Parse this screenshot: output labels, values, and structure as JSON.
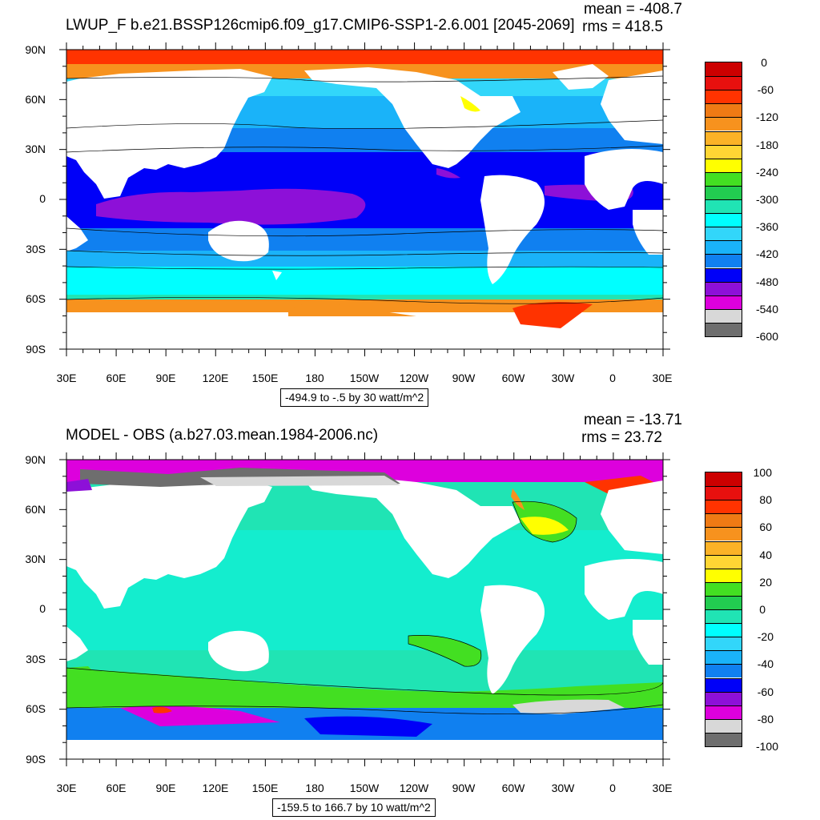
{
  "panels": [
    {
      "title": "LWUP_F b.e21.BSSP126cmip6.f09_g17.CMIP6-SSP1-2.6.001 [2045-2069]",
      "mean_text": "mean = -408.7",
      "rms_text": "rms = 418.5",
      "info_box": "-494.9 to -.5 by 30 watt/m^2",
      "lat_labels": [
        "90N",
        "60N",
        "30N",
        "0",
        "30S",
        "60S",
        "90S"
      ],
      "lon_labels": [
        "30E",
        "60E",
        "90E",
        "120E",
        "150E",
        "180",
        "150W",
        "120W",
        "90W",
        "60W",
        "30W",
        "0",
        "30E"
      ],
      "colorbar": {
        "labels": [
          "0",
          "-60",
          "-120",
          "-180",
          "-240",
          "-300",
          "-360",
          "-420",
          "-480",
          "-540",
          "-600"
        ],
        "colors": [
          "#cc0000",
          "#e8100e",
          "#ff3300",
          "#ef7a14",
          "#f7921e",
          "#fbb227",
          "#ffd634",
          "#ffff00",
          "#43df22",
          "#22cc50",
          "#20e4b4",
          "#00ffff",
          "#32d6fa",
          "#1ab3f9",
          "#1080f0",
          "#0000f8",
          "#8d10d8",
          "#dd00dd",
          "#d8d8d8",
          "#6e6e6e"
        ]
      }
    },
    {
      "title": "MODEL - OBS (a.b27.03.mean.1984-2006.nc)",
      "mean_text": "mean = -13.71",
      "rms_text": "rms = 23.72",
      "info_box": "-159.5 to 166.7 by 10 watt/m^2",
      "lat_labels": [
        "90N",
        "60N",
        "30N",
        "0",
        "30S",
        "60S",
        "90S"
      ],
      "lon_labels": [
        "30E",
        "60E",
        "90E",
        "120E",
        "150E",
        "180",
        "150W",
        "120W",
        "90W",
        "60W",
        "30W",
        "0",
        "30E"
      ],
      "colorbar": {
        "labels": [
          "100",
          "80",
          "60",
          "40",
          "20",
          "0",
          "-20",
          "-40",
          "-60",
          "-80",
          "-100"
        ],
        "colors": [
          "#cc0000",
          "#e8100e",
          "#ff3300",
          "#ef7a14",
          "#f7921e",
          "#fbb227",
          "#ffd634",
          "#ffff00",
          "#43df22",
          "#22cc50",
          "#20e4b4",
          "#00ffff",
          "#32d6fa",
          "#1ab3f9",
          "#1080f0",
          "#0000f8",
          "#8d10d8",
          "#dd00dd",
          "#d8d8d8",
          "#6e6e6e"
        ]
      }
    }
  ]
}
